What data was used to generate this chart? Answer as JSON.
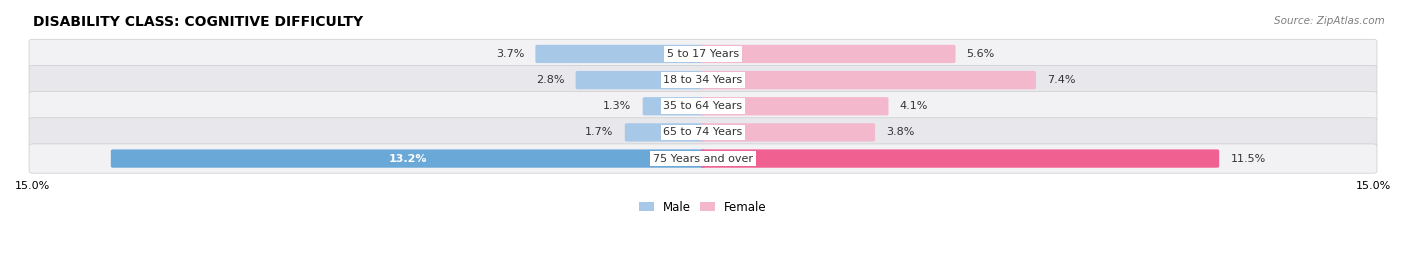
{
  "title": "DISABILITY CLASS: COGNITIVE DIFFICULTY",
  "source": "Source: ZipAtlas.com",
  "categories": [
    "5 to 17 Years",
    "18 to 34 Years",
    "35 to 64 Years",
    "65 to 74 Years",
    "75 Years and over"
  ],
  "male_values": [
    3.7,
    2.8,
    1.3,
    1.7,
    13.2
  ],
  "female_values": [
    5.6,
    7.4,
    4.1,
    3.8,
    11.5
  ],
  "male_colors": [
    "#a8c8e8",
    "#a8c8e8",
    "#a8c8e8",
    "#a8c8e8",
    "#6aa8d8"
  ],
  "female_colors": [
    "#f4b8cc",
    "#f4b8cc",
    "#f4b8cc",
    "#f4b8cc",
    "#f06090"
  ],
  "male_label": "Male",
  "female_label": "Female",
  "axis_max": 15.0,
  "x_tick_left": "15.0%",
  "x_tick_right": "15.0%",
  "row_bg_colors": [
    "#f2f2f4",
    "#e8e8ec",
    "#f2f2f4",
    "#e8e8ec",
    "#f2f2f4"
  ],
  "title_fontsize": 10,
  "label_fontsize": 8.5,
  "value_fontsize": 8.0,
  "category_fontsize": 8.0
}
